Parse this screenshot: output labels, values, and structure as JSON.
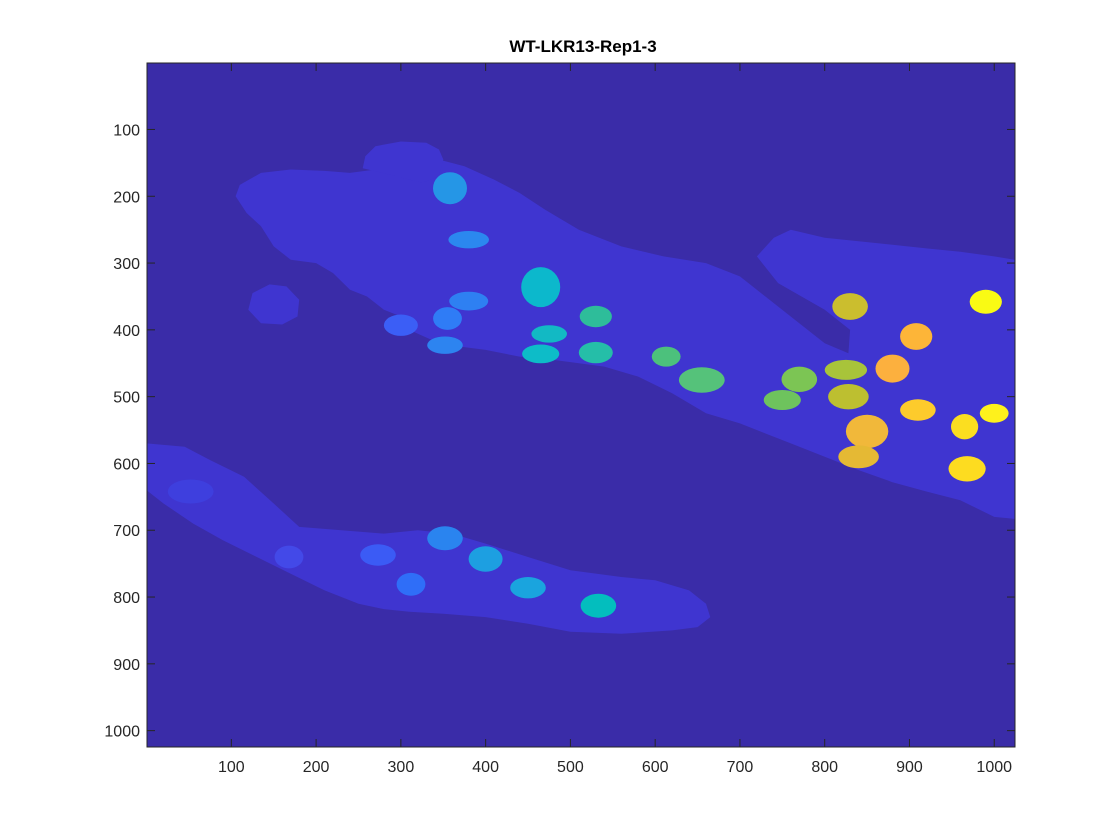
{
  "figure": {
    "title": "WT-LKR13-Rep1-3",
    "type": "segmentation label image",
    "image_width": 1024,
    "image_height": 1024,
    "x_ticks": [
      100,
      200,
      300,
      400,
      500,
      600,
      700,
      800,
      900,
      1000
    ],
    "y_ticks": [
      100,
      200,
      300,
      400,
      500,
      600,
      700,
      800,
      900,
      1000
    ],
    "colors": {
      "background": "#3a2ca8",
      "tissue_region": "#3f35d0",
      "colormap": "parula"
    },
    "regions": [
      {
        "name": "upper-band",
        "points": [
          [
            110,
            183
          ],
          [
            135,
            165
          ],
          [
            170,
            160
          ],
          [
            210,
            162
          ],
          [
            240,
            165
          ],
          [
            270,
            160
          ],
          [
            300,
            145
          ],
          [
            330,
            140
          ],
          [
            375,
            155
          ],
          [
            410,
            175
          ],
          [
            440,
            195
          ],
          [
            470,
            220
          ],
          [
            510,
            250
          ],
          [
            560,
            275
          ],
          [
            610,
            290
          ],
          [
            660,
            300
          ],
          [
            700,
            320
          ],
          [
            730,
            350
          ],
          [
            770,
            390
          ],
          [
            800,
            420
          ],
          [
            828,
            435
          ],
          [
            830,
            400
          ],
          [
            800,
            370
          ],
          [
            745,
            330
          ],
          [
            720,
            290
          ],
          [
            740,
            262
          ],
          [
            760,
            250
          ],
          [
            800,
            262
          ],
          [
            860,
            270
          ],
          [
            920,
            278
          ],
          [
            960,
            283
          ],
          [
            1000,
            290
          ],
          [
            1024,
            295
          ],
          [
            1024,
            683
          ],
          [
            1000,
            680
          ],
          [
            960,
            655
          ],
          [
            920,
            642
          ],
          [
            880,
            628
          ],
          [
            840,
            610
          ],
          [
            800,
            590
          ],
          [
            760,
            570
          ],
          [
            740,
            560
          ],
          [
            700,
            540
          ],
          [
            660,
            525
          ],
          [
            620,
            495
          ],
          [
            580,
            470
          ],
          [
            540,
            455
          ],
          [
            480,
            445
          ],
          [
            440,
            440
          ],
          [
            400,
            430
          ],
          [
            370,
            425
          ],
          [
            345,
            420
          ],
          [
            310,
            400
          ],
          [
            300,
            380
          ],
          [
            280,
            370
          ],
          [
            260,
            350
          ],
          [
            240,
            340
          ],
          [
            220,
            315
          ],
          [
            200,
            300
          ],
          [
            170,
            295
          ],
          [
            150,
            275
          ],
          [
            135,
            245
          ],
          [
            118,
            225
          ],
          [
            105,
            200
          ]
        ]
      },
      {
        "name": "upper-notch",
        "points": [
          [
            255,
            158
          ],
          [
            295,
            170
          ],
          [
            325,
            180
          ],
          [
            345,
            170
          ],
          [
            350,
            145
          ],
          [
            345,
            130
          ],
          [
            330,
            120
          ],
          [
            300,
            118
          ],
          [
            270,
            125
          ],
          [
            258,
            140
          ]
        ]
      },
      {
        "name": "left-lobe",
        "points": [
          [
            125,
            345
          ],
          [
            145,
            332
          ],
          [
            165,
            335
          ],
          [
            180,
            355
          ],
          [
            178,
            380
          ],
          [
            160,
            392
          ],
          [
            135,
            390
          ],
          [
            120,
            370
          ]
        ]
      },
      {
        "name": "lower-band",
        "points": [
          [
            0,
            570
          ],
          [
            45,
            575
          ],
          [
            75,
            595
          ],
          [
            115,
            620
          ],
          [
            150,
            660
          ],
          [
            180,
            695
          ],
          [
            230,
            700
          ],
          [
            280,
            705
          ],
          [
            320,
            700
          ],
          [
            360,
            705
          ],
          [
            400,
            720
          ],
          [
            450,
            740
          ],
          [
            500,
            760
          ],
          [
            560,
            770
          ],
          [
            600,
            775
          ],
          [
            640,
            790
          ],
          [
            660,
            810
          ],
          [
            665,
            830
          ],
          [
            650,
            845
          ],
          [
            620,
            850
          ],
          [
            560,
            855
          ],
          [
            500,
            852
          ],
          [
            450,
            840
          ],
          [
            400,
            830
          ],
          [
            350,
            825
          ],
          [
            310,
            822
          ],
          [
            280,
            818
          ],
          [
            250,
            810
          ],
          [
            210,
            790
          ],
          [
            170,
            765
          ],
          [
            130,
            740
          ],
          [
            90,
            715
          ],
          [
            55,
            690
          ],
          [
            20,
            660
          ],
          [
            0,
            640
          ]
        ]
      }
    ],
    "cells": [
      {
        "x": 358,
        "y": 188,
        "rx": 20,
        "ry": 24,
        "color": "#2596e6"
      },
      {
        "x": 380,
        "y": 265,
        "rx": 24,
        "ry": 13,
        "color": "#2b88ef"
      },
      {
        "x": 300,
        "y": 393,
        "rx": 20,
        "ry": 16,
        "color": "#3b5ef6"
      },
      {
        "x": 355,
        "y": 383,
        "rx": 17,
        "ry": 17,
        "color": "#2f7cf6"
      },
      {
        "x": 380,
        "y": 357,
        "rx": 23,
        "ry": 14,
        "color": "#2e80f2"
      },
      {
        "x": 352,
        "y": 423,
        "rx": 21,
        "ry": 13,
        "color": "#2d84f0"
      },
      {
        "x": 465,
        "y": 336,
        "rx": 23,
        "ry": 30,
        "color": "#0cb8cc"
      },
      {
        "x": 475,
        "y": 406,
        "rx": 21,
        "ry": 13,
        "color": "#12b9c4"
      },
      {
        "x": 465,
        "y": 436,
        "rx": 22,
        "ry": 14,
        "color": "#0dbcc8"
      },
      {
        "x": 530,
        "y": 380,
        "rx": 19,
        "ry": 16,
        "color": "#2ebd9a"
      },
      {
        "x": 530,
        "y": 434,
        "rx": 20,
        "ry": 16,
        "color": "#25bea8"
      },
      {
        "x": 613,
        "y": 440,
        "rx": 17,
        "ry": 15,
        "color": "#4cc17c"
      },
      {
        "x": 655,
        "y": 475,
        "rx": 27,
        "ry": 19,
        "color": "#55c27a"
      },
      {
        "x": 770,
        "y": 474,
        "rx": 21,
        "ry": 19,
        "color": "#7cc554"
      },
      {
        "x": 750,
        "y": 505,
        "rx": 22,
        "ry": 15,
        "color": "#6ec35d"
      },
      {
        "x": 830,
        "y": 365,
        "rx": 21,
        "ry": 20,
        "color": "#cbbe2e"
      },
      {
        "x": 825,
        "y": 460,
        "rx": 25,
        "ry": 15,
        "color": "#a8c43a"
      },
      {
        "x": 828,
        "y": 500,
        "rx": 24,
        "ry": 19,
        "color": "#bdbf30"
      },
      {
        "x": 908,
        "y": 410,
        "rx": 19,
        "ry": 20,
        "color": "#fdb538"
      },
      {
        "x": 880,
        "y": 458,
        "rx": 20,
        "ry": 21,
        "color": "#fcb03e"
      },
      {
        "x": 990,
        "y": 358,
        "rx": 19,
        "ry": 18,
        "color": "#f9fa14"
      },
      {
        "x": 910,
        "y": 520,
        "rx": 21,
        "ry": 16,
        "color": "#fdcb2c"
      },
      {
        "x": 1000,
        "y": 525,
        "rx": 17,
        "ry": 14,
        "color": "#fef11c"
      },
      {
        "x": 965,
        "y": 545,
        "rx": 16,
        "ry": 19,
        "color": "#fbde20"
      },
      {
        "x": 850,
        "y": 552,
        "rx": 25,
        "ry": 25,
        "color": "#f1b83a"
      },
      {
        "x": 840,
        "y": 590,
        "rx": 24,
        "ry": 17,
        "color": "#e5b934"
      },
      {
        "x": 968,
        "y": 608,
        "rx": 22,
        "ry": 19,
        "color": "#fddc20"
      },
      {
        "x": 52,
        "y": 642,
        "rx": 27,
        "ry": 18,
        "color": "#3e3fde"
      },
      {
        "x": 168,
        "y": 740,
        "rx": 17,
        "ry": 17,
        "color": "#4349e8"
      },
      {
        "x": 273,
        "y": 737,
        "rx": 21,
        "ry": 16,
        "color": "#3b5bf5"
      },
      {
        "x": 352,
        "y": 712,
        "rx": 21,
        "ry": 18,
        "color": "#2a84ef"
      },
      {
        "x": 312,
        "y": 781,
        "rx": 17,
        "ry": 17,
        "color": "#2f6ef8"
      },
      {
        "x": 400,
        "y": 743,
        "rx": 20,
        "ry": 19,
        "color": "#1d9fe1"
      },
      {
        "x": 450,
        "y": 786,
        "rx": 21,
        "ry": 16,
        "color": "#1aa4de"
      },
      {
        "x": 533,
        "y": 813,
        "rx": 21,
        "ry": 18,
        "color": "#03bebe"
      }
    ]
  }
}
